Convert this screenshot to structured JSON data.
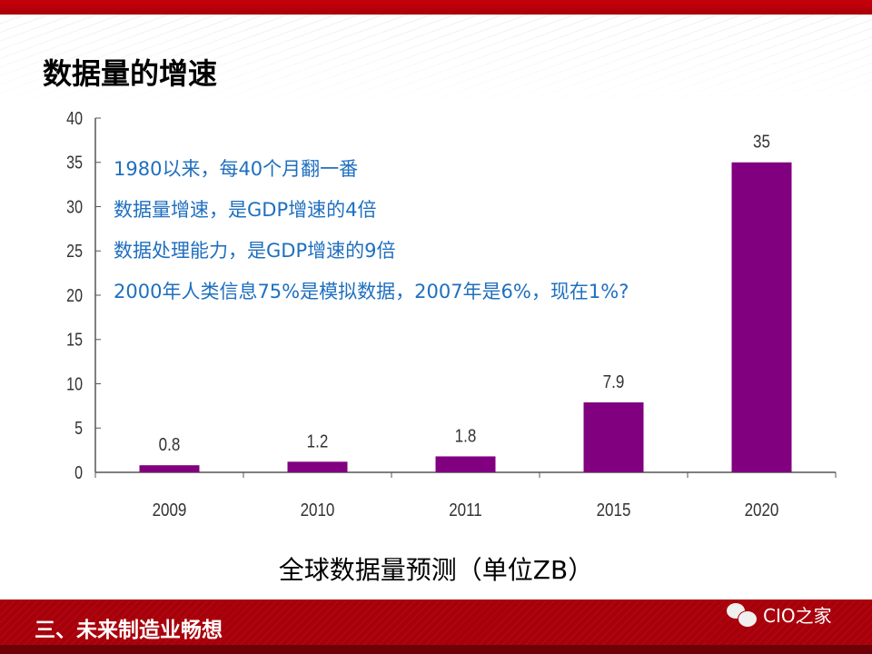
{
  "slide": {
    "title": "数据量的增速",
    "notes": [
      "1980以来，每40个月翻一番",
      "数据量增速，是GDP增速的4倍",
      "数据处理能力，是GDP增速的9倍",
      "2000年人类信息75%是模拟数据，2007年是6%，现在1%?"
    ],
    "footer_section": "三、未来制造业畅想",
    "brand": "CIO之家",
    "brand_icon": "wechat-icon"
  },
  "colors": {
    "bar": "#800080",
    "accent": "#a8000a",
    "notes": "#1f6fbf"
  },
  "chart_data": {
    "type": "bar",
    "title": "全球数据量预测（单位ZB）",
    "categories": [
      "2009",
      "2010",
      "2011",
      "2015",
      "2020"
    ],
    "values": [
      0.8,
      1.2,
      1.8,
      7.9,
      35
    ],
    "data_labels": [
      "0.8",
      "1.2",
      "1.8",
      "7.9",
      "35"
    ],
    "ylim": [
      0,
      40
    ],
    "yticks": [
      0,
      5,
      10,
      15,
      20,
      25,
      30,
      35,
      40
    ],
    "xlabel": "",
    "ylabel": "",
    "grid": false,
    "legend": "none"
  }
}
